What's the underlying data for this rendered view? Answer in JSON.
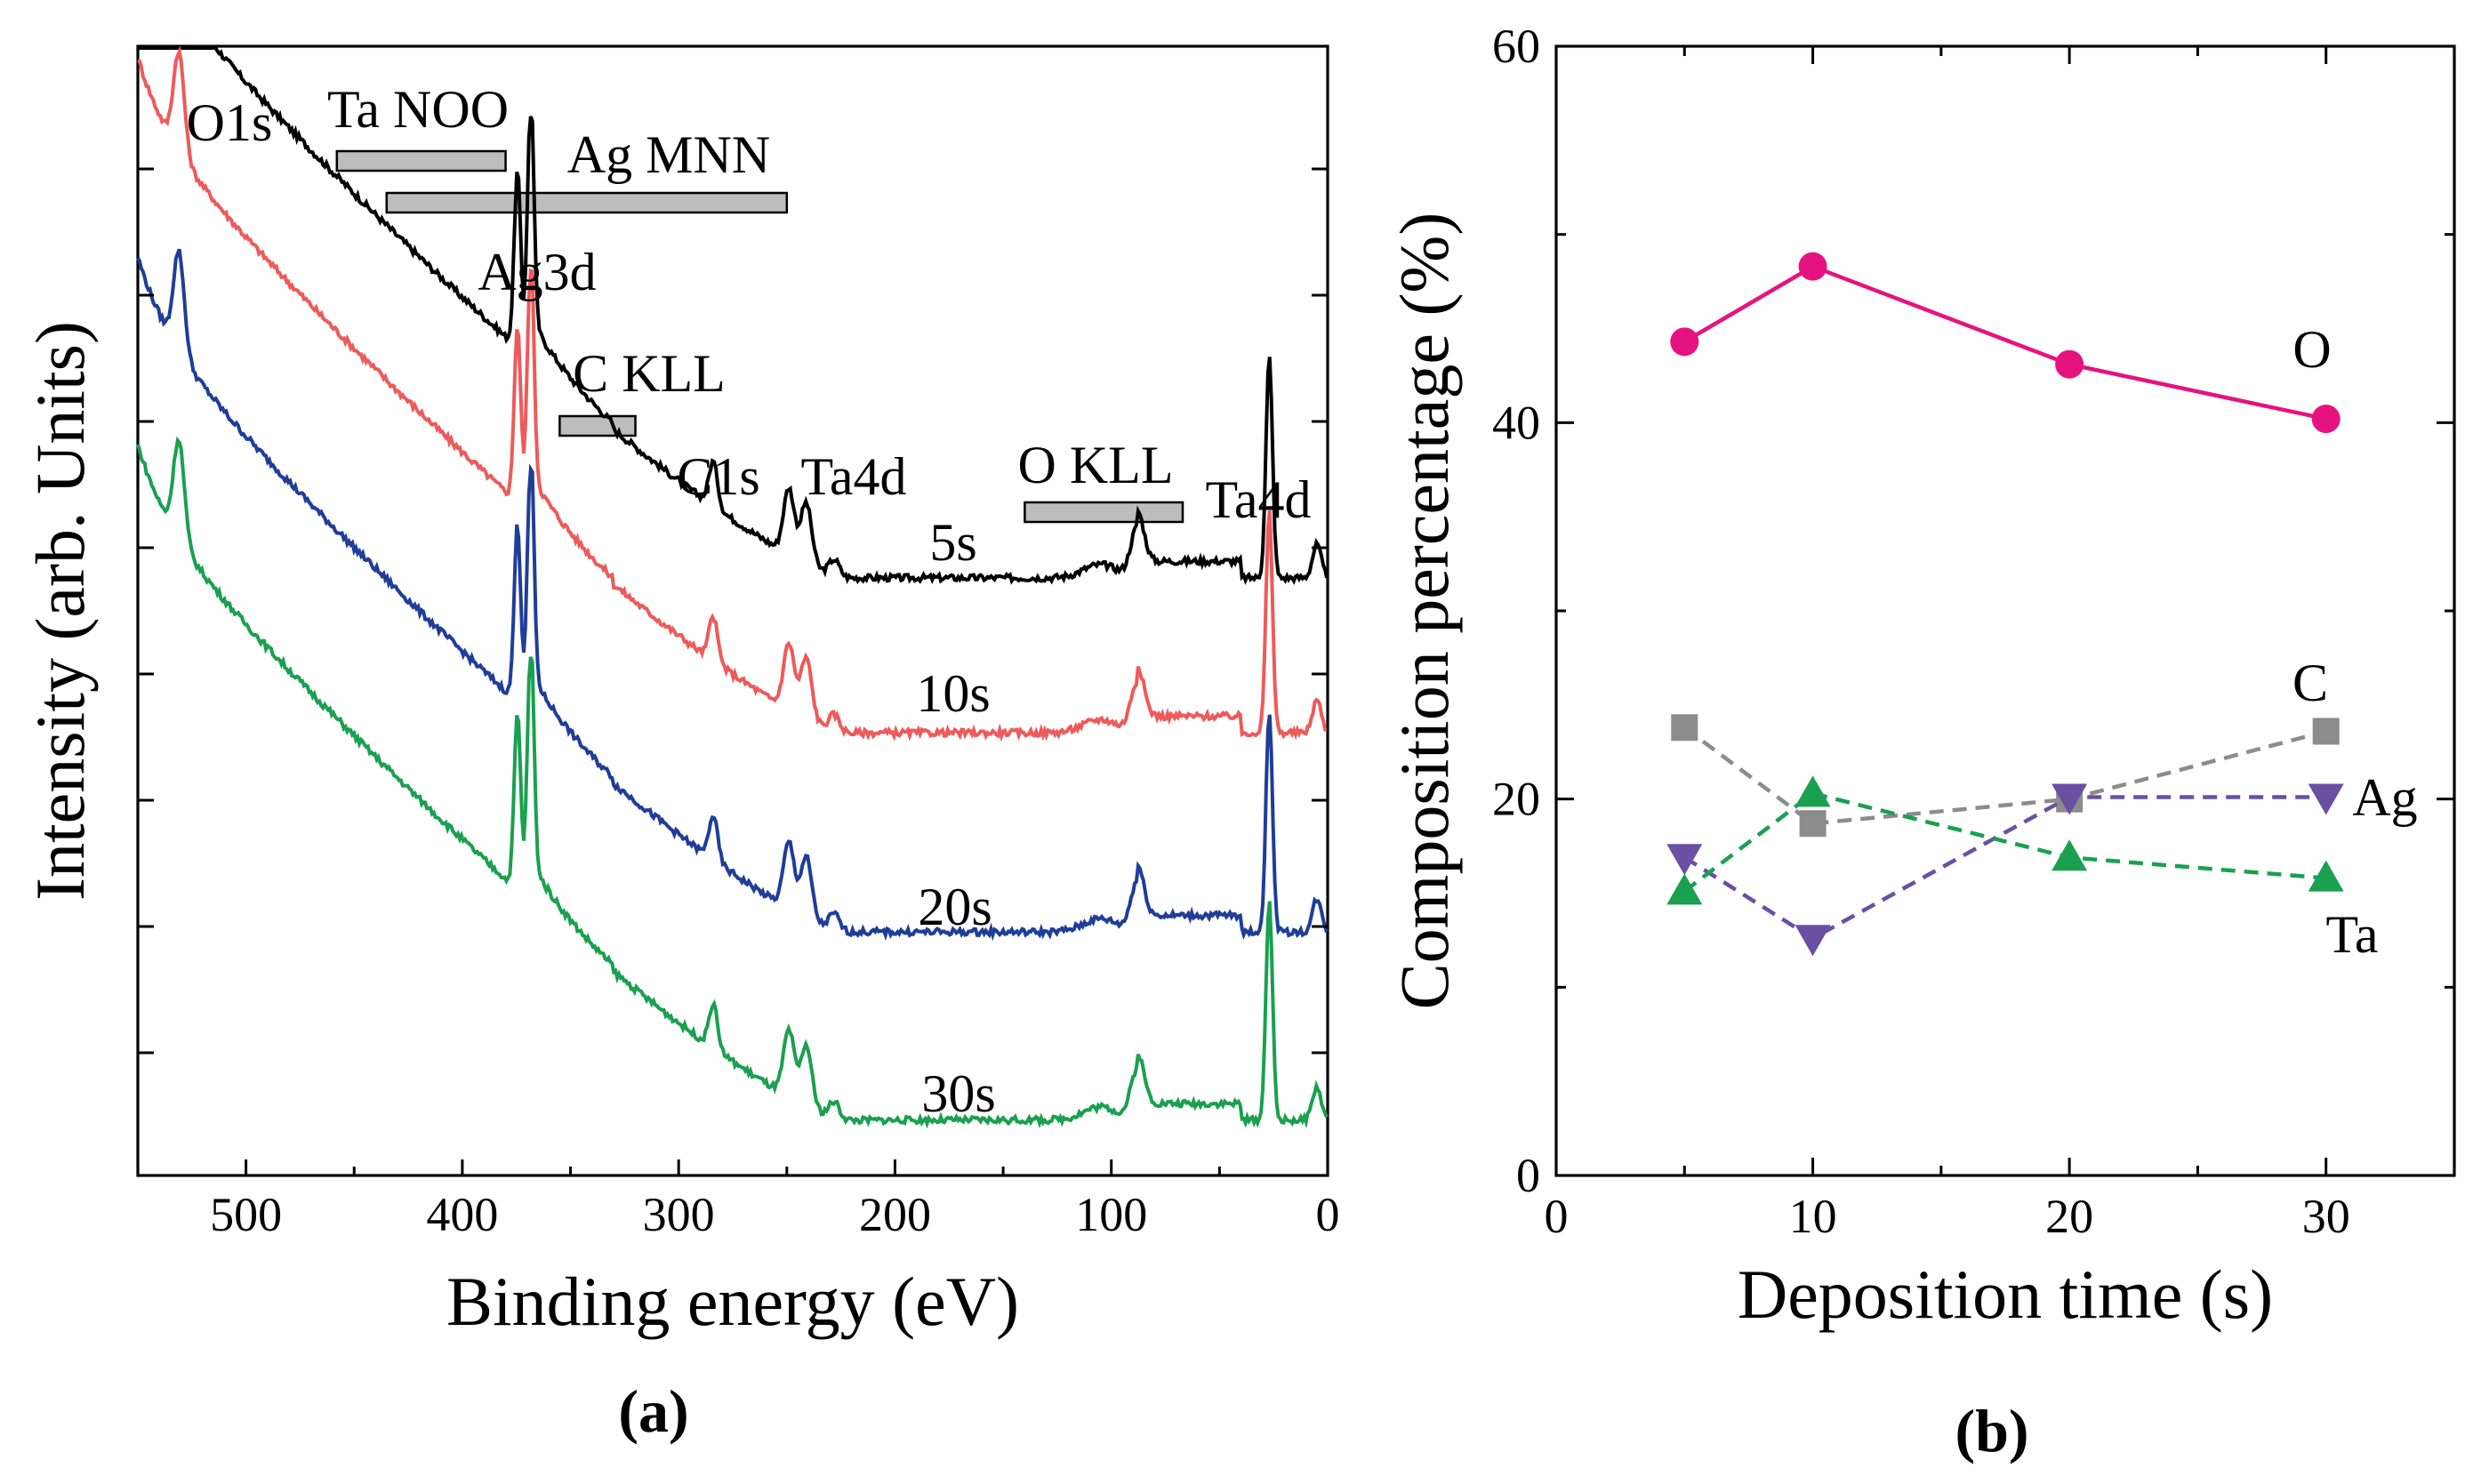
{
  "chart_data": [
    {
      "type": "line",
      "panel_label": "(a)",
      "xlabel": "Binding energy (eV)",
      "ylabel": "Intensity (arb. Units)",
      "xlim": [
        550,
        0
      ],
      "x_ticks": [
        500,
        400,
        300,
        200,
        100,
        0
      ],
      "x_tick_labels": [
        "500",
        "400",
        "300",
        "200",
        "100",
        "0"
      ],
      "series": [
        {
          "name": "5s",
          "color": "#000000",
          "baseline": 0.52
        },
        {
          "name": "10s",
          "color": "#ee5a5a",
          "baseline": 0.38
        },
        {
          "name": "20s",
          "color": "#1f3d99",
          "baseline": 0.2
        },
        {
          "name": "30s",
          "color": "#1aa04f",
          "baseline": 0.03
        }
      ],
      "peak_labels": [
        {
          "text": "O1s",
          "energy": 531
        },
        {
          "text": "Ag3d",
          "energy": 370
        },
        {
          "text": "C1s",
          "energy": 284
        },
        {
          "text": "Ta4d",
          "energy": 235
        },
        {
          "text": "Ta4d",
          "energy": 30
        }
      ],
      "auger_ranges": [
        {
          "text": "Ta NOO",
          "from": 458,
          "to": 380
        },
        {
          "text": "Ag MNN",
          "from": 435,
          "to": 250
        },
        {
          "text": "C KLL",
          "from": 355,
          "to": 320
        },
        {
          "text": "O KLL",
          "from": 140,
          "to": 67
        }
      ]
    },
    {
      "type": "line",
      "panel_label": "(b)",
      "xlabel": "Deposition time (s)",
      "ylabel": "Composition percentage (%)",
      "xlim": [
        0,
        35
      ],
      "ylim": [
        0,
        60
      ],
      "x_ticks": [
        0,
        10,
        20,
        30
      ],
      "y_ticks": [
        0,
        20,
        40,
        60
      ],
      "x_tick_labels": [
        "0",
        "10",
        "20",
        "30"
      ],
      "y_tick_labels": [
        "0",
        "20",
        "40",
        "60"
      ],
      "x": [
        5,
        10,
        20,
        30
      ],
      "series": [
        {
          "name": "O",
          "values": [
            44.3,
            48.3,
            43.1,
            40.2
          ],
          "color": "#e6127f",
          "marker": "circle",
          "dashed": false
        },
        {
          "name": "C",
          "values": [
            23.8,
            18.7,
            20.0,
            23.6
          ],
          "color": "#8c8c8c",
          "marker": "square",
          "dashed": true
        },
        {
          "name": "Ag",
          "values": [
            16.9,
            12.6,
            20.1,
            20.1
          ],
          "color": "#6a4fa3",
          "marker": "triangle-down",
          "dashed": true
        },
        {
          "name": "Ta",
          "values": [
            15.1,
            20.3,
            16.9,
            15.8
          ],
          "color": "#1aa04f",
          "marker": "triangle-up",
          "dashed": true
        }
      ]
    }
  ]
}
